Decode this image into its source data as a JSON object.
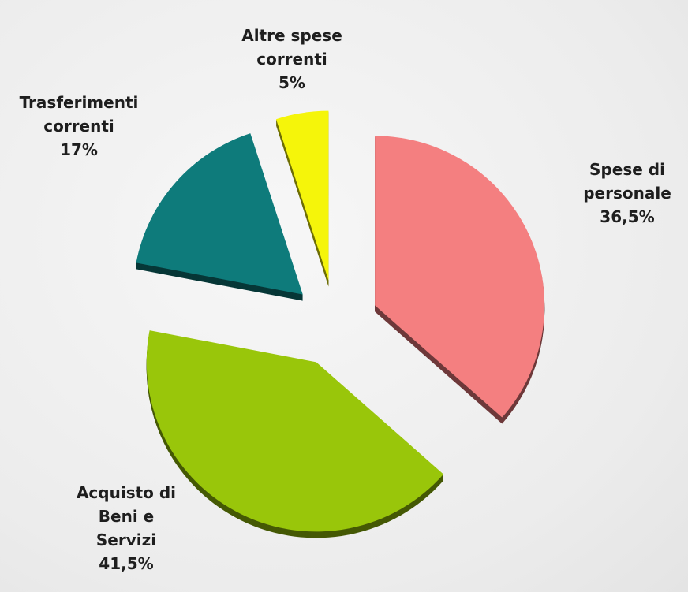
{
  "chart_data": {
    "type": "pie",
    "categories": [
      "Spese di personale",
      "Acquisto di Beni e Servizi",
      "Trasferimenti correnti",
      "Altre spese correnti"
    ],
    "values": [
      36.5,
      41.5,
      17,
      5
    ],
    "value_labels": [
      "36,5%",
      "41,5%",
      "17%",
      "5%"
    ],
    "colors": [
      "#f47f80",
      "#99c60a",
      "#0e7b7b",
      "#f5f50a"
    ]
  }
}
